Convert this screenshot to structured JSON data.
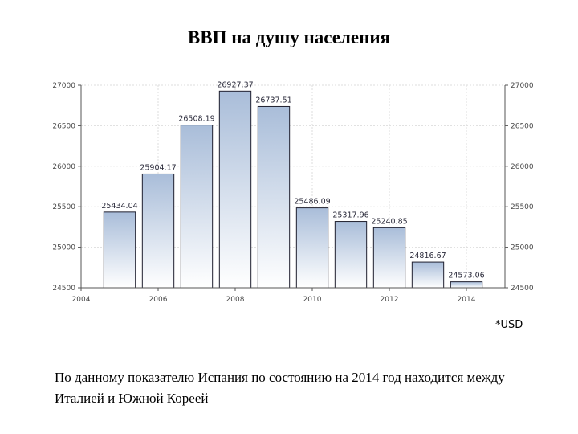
{
  "slide": {
    "title": "ВВП на душу населения",
    "currency_note": "*USD",
    "footnote": "По данному показателю Испания по состоянию на 2014 год находится между Италией и Южной Кореей"
  },
  "chart_data": {
    "type": "bar",
    "title": "ВВП на душу населения",
    "xlabel": "",
    "ylabel": "",
    "unit": "*USD",
    "x": [
      2005,
      2006,
      2007,
      2008,
      2009,
      2010,
      2011,
      2012,
      2013,
      2014
    ],
    "values": [
      25434.04,
      25904.17,
      26508.19,
      26927.37,
      26737.51,
      25486.09,
      25317.96,
      25240.85,
      24816.67,
      24573.06
    ],
    "value_labels": [
      "25434.04",
      "25904.17",
      "26508.19",
      "26927.37",
      "26737.51",
      "25486.09",
      "25317.96",
      "25240.85",
      "24816.67",
      "24573.06"
    ],
    "ylim": [
      24500,
      27000
    ],
    "y_ticks": [
      24500,
      25000,
      25500,
      26000,
      26500,
      27000
    ],
    "y_tick_labels": [
      "24500",
      "25000",
      "25500",
      "26000",
      "26500",
      "27000"
    ],
    "xlim": [
      2004,
      2015
    ],
    "x_ticks": [
      2004,
      2006,
      2008,
      2010,
      2012,
      2014
    ],
    "x_tick_labels": [
      "2004",
      "2006",
      "2008",
      "2010",
      "2012",
      "2014"
    ],
    "grid": true,
    "legend": "none",
    "bar_fill_top": "#a9bdd9",
    "bar_fill_bottom": "#ffffff",
    "bar_stroke": "#1f1f2e",
    "grid_color": "#dddddd"
  }
}
